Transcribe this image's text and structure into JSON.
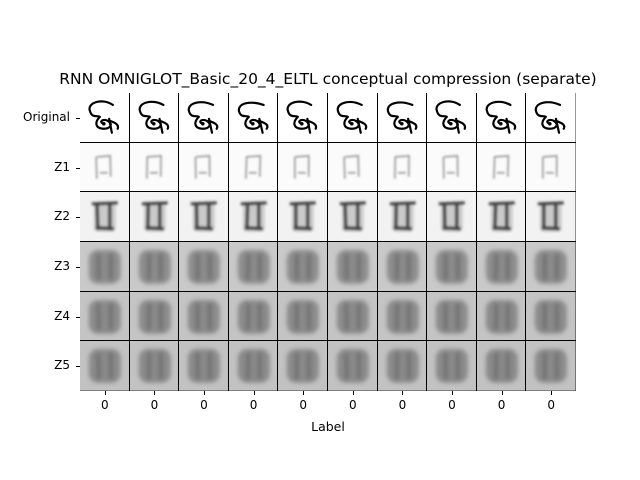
{
  "title": "RNN OMNIGLOT_Basic_20_4_ELTL conceptual compression (separate)",
  "xlabel": "Label",
  "row_labels": [
    "Original",
    "Z1",
    "Z2",
    "Z3",
    "Z4",
    "Z5"
  ],
  "column_labels": [
    "0",
    "0",
    "0",
    "0",
    "0",
    "0",
    "0",
    "0",
    "0",
    "0"
  ],
  "background_colors": {
    "Original": "#ffffff",
    "Z1": "#fbfbfb",
    "Z2": "#f2f2f2",
    "Z3": "#c9c9c9",
    "Z4": "#c4c4c4",
    "Z5": "#c2c2c2"
  }
}
